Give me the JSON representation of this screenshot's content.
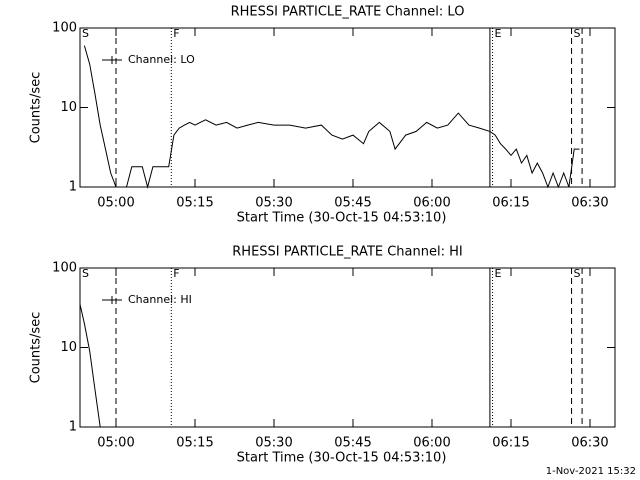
{
  "chart_data": [
    {
      "type": "line",
      "title": "RHESSI PARTICLE_RATE Channel: LO",
      "xlabel": "Start Time (30-Oct-15 04:53:10)",
      "ylabel": "Counts/sec",
      "log_y": true,
      "ylim": [
        1,
        100
      ],
      "yticks": [
        1,
        10,
        100
      ],
      "xlim": [
        "04:53:10",
        "06:34:45"
      ],
      "xticks": [
        "05:00",
        "05:15",
        "05:30",
        "05:45",
        "06:00",
        "06:15",
        "06:30"
      ],
      "legend": "upper left",
      "series": [
        {
          "name": "Channel: LO",
          "color": "#000000",
          "x": [
            "04:54",
            "04:55",
            "04:56",
            "04:57",
            "04:58",
            "04:59",
            "05:00",
            "05:01",
            "05:02",
            "05:03",
            "05:04",
            "05:05",
            "05:06",
            "05:07",
            "05:08",
            "05:09",
            "05:10",
            "05:11",
            "05:12",
            "05:13",
            "05:14",
            "05:15",
            "05:17",
            "05:19",
            "05:21",
            "05:23",
            "05:25",
            "05:27",
            "05:30",
            "05:33",
            "05:36",
            "05:39",
            "05:41",
            "05:43",
            "05:45",
            "05:47",
            "05:48",
            "05:50",
            "05:52",
            "05:53",
            "05:55",
            "05:57",
            "05:59",
            "06:01",
            "06:03",
            "06:05",
            "06:07",
            "06:09",
            "06:11",
            "06:12",
            "06:13",
            "06:14",
            "06:15",
            "06:16",
            "06:17",
            "06:18",
            "06:19",
            "06:20",
            "06:21",
            "06:22",
            "06:23",
            "06:24",
            "06:25",
            "06:26",
            "06:27",
            "06:28"
          ],
          "values": [
            60,
            35,
            15,
            6,
            3,
            1.5,
            1,
            1,
            1,
            1.8,
            1.8,
            1.8,
            1,
            1.8,
            1.8,
            1.8,
            1.8,
            4.5,
            5.5,
            6,
            6.5,
            6,
            7,
            6,
            6.5,
            5.5,
            6,
            6.5,
            6,
            6,
            5.5,
            6,
            4.5,
            4,
            4.5,
            3.5,
            5,
            6.5,
            5,
            3,
            4.5,
            5,
            6.5,
            5.5,
            6,
            8.5,
            6,
            5.5,
            5,
            4.5,
            3.5,
            3,
            2.5,
            3,
            2,
            2.5,
            1.5,
            2,
            1.5,
            1,
            1.5,
            1,
            1.5,
            1,
            3,
            3
          ]
        }
      ],
      "lines": [
        {
          "x": "05:00",
          "style": "dashed"
        },
        {
          "x": "05:10:30",
          "style": "dotted"
        },
        {
          "x": "06:11",
          "style": "solid"
        },
        {
          "x": "06:11:30",
          "style": "dotted"
        },
        {
          "x": "06:26:30",
          "style": "dashed"
        },
        {
          "x": "06:28:30",
          "style": "dashed"
        }
      ],
      "labels": [
        {
          "text": "S",
          "x": "04:53:10"
        },
        {
          "text": "F",
          "x": "05:10:30"
        },
        {
          "text": "E",
          "x": "06:11:30"
        },
        {
          "text": "S",
          "x": "06:26:30"
        }
      ]
    },
    {
      "type": "line",
      "title": "RHESSI PARTICLE_RATE Channel: HI",
      "xlabel": "Start Time (30-Oct-15 04:53:10)",
      "ylabel": "Counts/sec",
      "log_y": true,
      "ylim": [
        1,
        100
      ],
      "yticks": [
        1,
        10,
        100
      ],
      "xlim": [
        "04:53:10",
        "06:34:45"
      ],
      "xticks": [
        "05:00",
        "05:15",
        "05:30",
        "05:45",
        "06:00",
        "06:15",
        "06:30"
      ],
      "legend": "upper left",
      "series": [
        {
          "name": "Channel: HI",
          "color": "#000000",
          "x": [
            "04:53:10",
            "04:54",
            "04:55",
            "04:56",
            "04:57"
          ],
          "values": [
            35,
            20,
            9,
            3,
            1
          ]
        }
      ],
      "lines": [
        {
          "x": "05:00",
          "style": "dashed"
        },
        {
          "x": "05:10:30",
          "style": "dotted"
        },
        {
          "x": "06:11",
          "style": "solid"
        },
        {
          "x": "06:11:30",
          "style": "dotted"
        },
        {
          "x": "06:26:30",
          "style": "dashed"
        },
        {
          "x": "06:28:30",
          "style": "dashed"
        }
      ],
      "labels": [
        {
          "text": "S",
          "x": "04:53:10"
        },
        {
          "text": "F",
          "x": "05:10:30"
        },
        {
          "text": "E",
          "x": "06:11:30"
        },
        {
          "text": "S",
          "x": "06:26:30"
        }
      ]
    }
  ],
  "footer": "1-Nov-2021 15:32"
}
